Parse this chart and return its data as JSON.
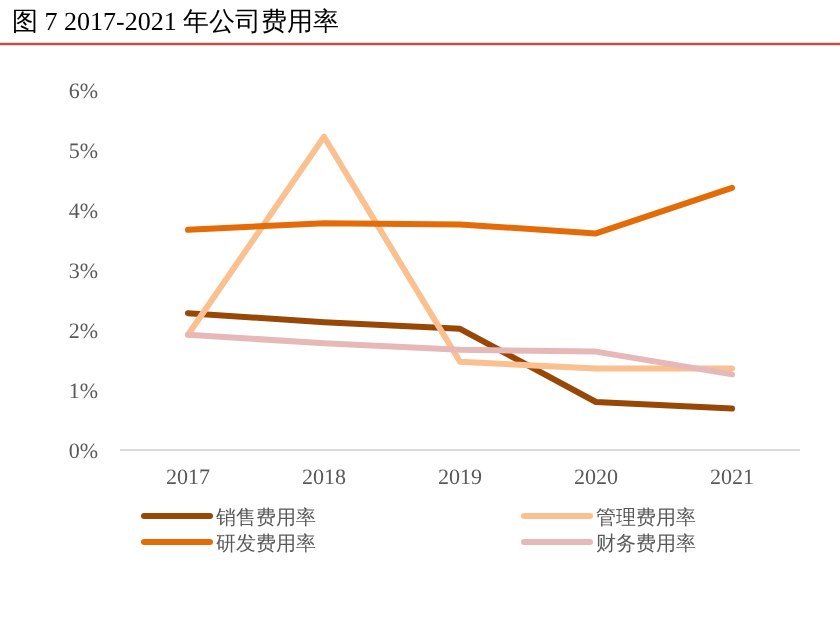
{
  "chart_data": {
    "type": "line",
    "title": "图 7 2017-2021 年公司费用率",
    "categories": [
      "2017",
      "2018",
      "2019",
      "2020",
      "2021"
    ],
    "series": [
      {
        "name": "销售费用率",
        "color": "#974706",
        "values": [
          2.28,
          2.13,
          2.02,
          0.8,
          0.69
        ]
      },
      {
        "name": "管理费用率",
        "color": "#fac090",
        "values": [
          1.92,
          5.22,
          1.47,
          1.36,
          1.36
        ]
      },
      {
        "name": "研发费用率",
        "color": "#e36c09",
        "values": [
          3.67,
          3.78,
          3.76,
          3.61,
          4.37
        ]
      },
      {
        "name": "财务费用率",
        "color": "#e6b9b8",
        "values": [
          1.92,
          1.78,
          1.67,
          1.64,
          1.26
        ]
      }
    ],
    "ylim": [
      0,
      6
    ],
    "yticks": [
      {
        "value": 0,
        "label": "0%"
      },
      {
        "value": 1,
        "label": "1%"
      },
      {
        "value": 2,
        "label": "2%"
      },
      {
        "value": 3,
        "label": "3%"
      },
      {
        "value": 4,
        "label": "4%"
      },
      {
        "value": 5,
        "label": "5%"
      },
      {
        "value": 6,
        "label": "6%"
      }
    ],
    "grid": false,
    "legend": "bottom",
    "marker": "none",
    "line_style": "solid"
  }
}
